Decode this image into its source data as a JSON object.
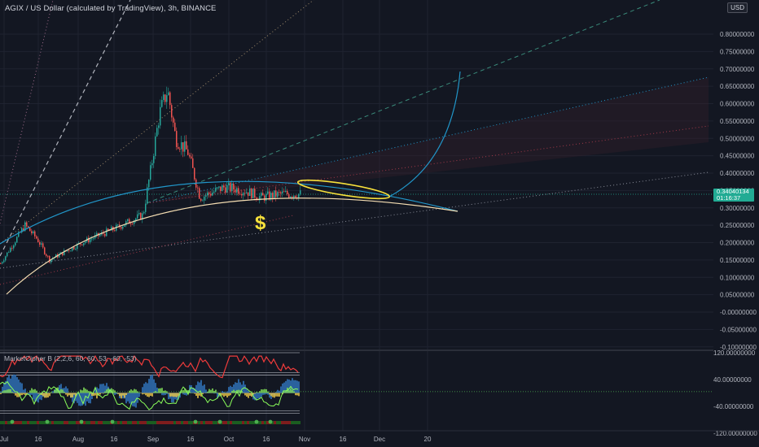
{
  "header": {
    "symbol_line": "AGIX / US Dollar (calculated by TradingView), 3h, BINANCE"
  },
  "currency_button": "USD",
  "price_axis": {
    "labels": [
      "0.80000000",
      "0.75000000",
      "0.70000000",
      "0.65000000",
      "0.60000000",
      "0.55000000",
      "0.50000000",
      "0.45000000",
      "0.40000000",
      "0.35000000",
      "0.30000000",
      "0.25000000",
      "0.20000000",
      "0.15000000",
      "0.10000000",
      "0.05000000",
      "-0.00000000",
      "-0.05000000",
      "-0.10000000"
    ],
    "values": [
      0.8,
      0.75,
      0.7,
      0.65,
      0.6,
      0.55,
      0.5,
      0.45,
      0.4,
      0.35,
      0.3,
      0.25,
      0.2,
      0.15,
      0.1,
      0.05,
      0.0,
      -0.05,
      -0.1
    ]
  },
  "last_price": {
    "value": "0.34040134",
    "countdown": "01:16:37",
    "color": "#22ab94"
  },
  "oscillator": {
    "title": "MarketCipher B (2,2,6, 60, 60, 53, -60, -53)",
    "axis_labels": [
      "120.00000000",
      "40.00000000",
      "-40.00000000",
      "-120.00000000"
    ],
    "axis_values": [
      120,
      40,
      -40,
      -120
    ]
  },
  "time_axis": {
    "labels": [
      "Jul",
      "16",
      "Aug",
      "16",
      "Sep",
      "16",
      "Oct",
      "16",
      "Nov",
      "16",
      "Dec",
      "20"
    ]
  },
  "annotation": {
    "dollar_sign": "$",
    "color": "#f7e13b"
  },
  "colors": {
    "background": "#131722",
    "up_candle": "#26a69a",
    "down_candle": "#ef5350",
    "arc_blue": "#2196c9",
    "arc_cream": "#f5deb3",
    "highlight_yellow": "#f7e13b"
  }
}
